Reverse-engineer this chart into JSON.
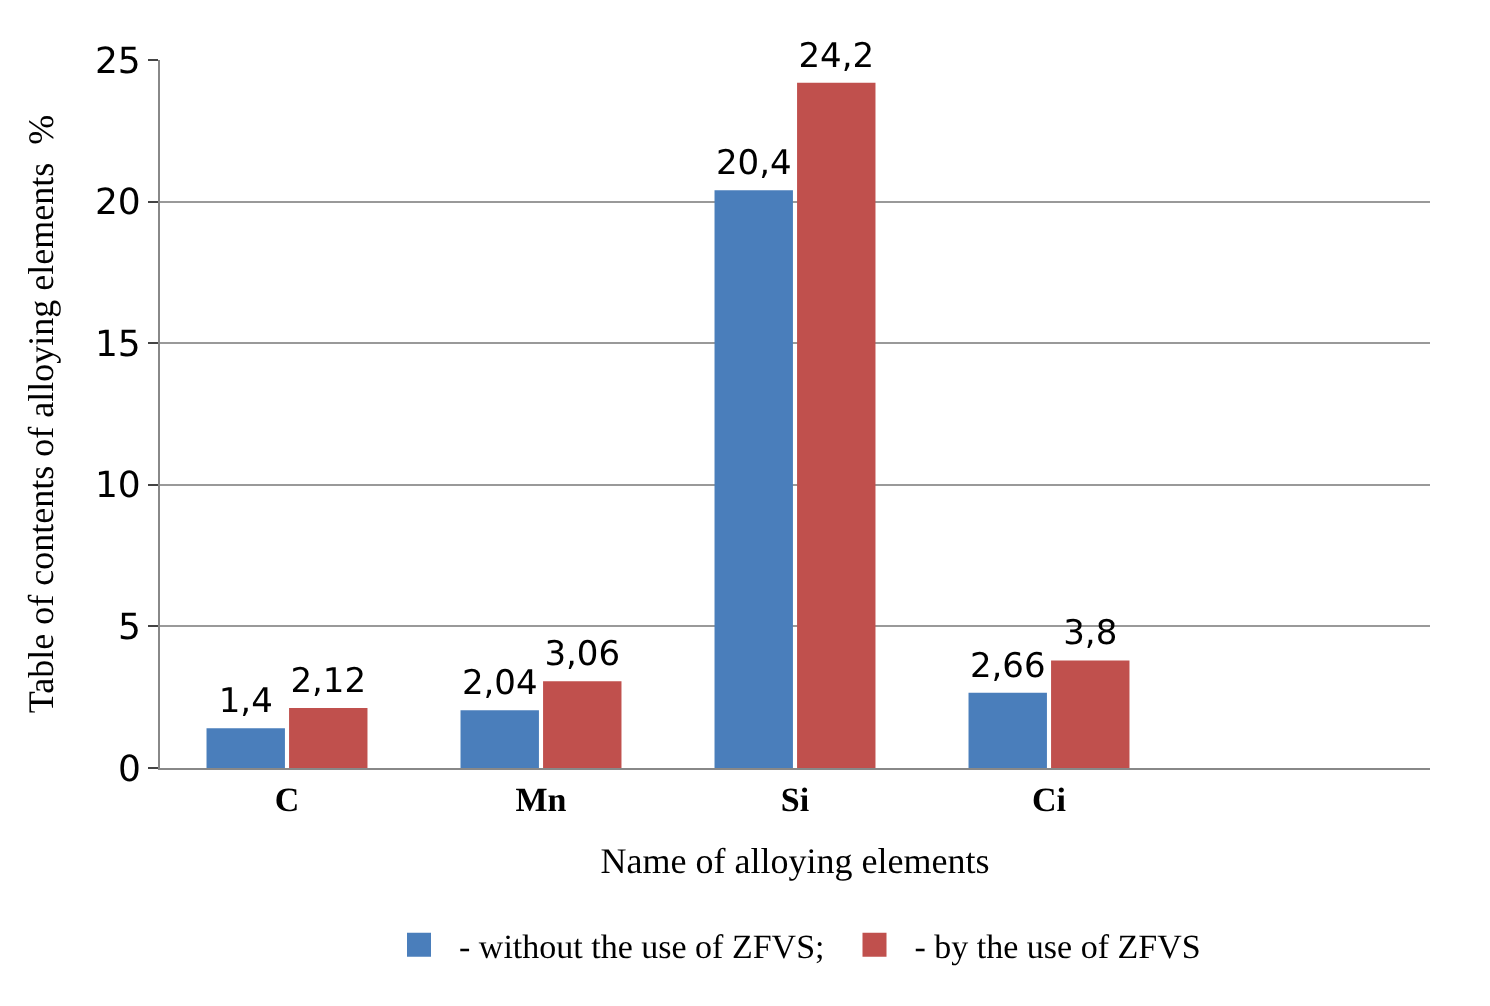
{
  "chart_data": {
    "type": "bar",
    "xlabel": "Name of alloying elements",
    "ylabel": "Table of contents of alloying elements  %",
    "categories": [
      "C",
      "Mn",
      "Si",
      "Ci"
    ],
    "series": [
      {
        "name": "- without the use of ZFVS;",
        "color": "#4a7ebb",
        "values": [
          1.4,
          2.04,
          20.4,
          2.66
        ],
        "value_labels": [
          "1,4",
          "2,04",
          "20,4",
          "2,66"
        ]
      },
      {
        "name": "- by the use of ZFVS",
        "color": "#c0504d",
        "values": [
          2.12,
          3.06,
          24.2,
          3.8
        ],
        "value_labels": [
          "2,12",
          "3,06",
          "24,2",
          "3,8"
        ]
      }
    ],
    "ylim": [
      0,
      25
    ],
    "yticks": [
      0,
      5,
      10,
      15,
      20,
      25
    ],
    "grid": "y",
    "legend": "bottom"
  }
}
